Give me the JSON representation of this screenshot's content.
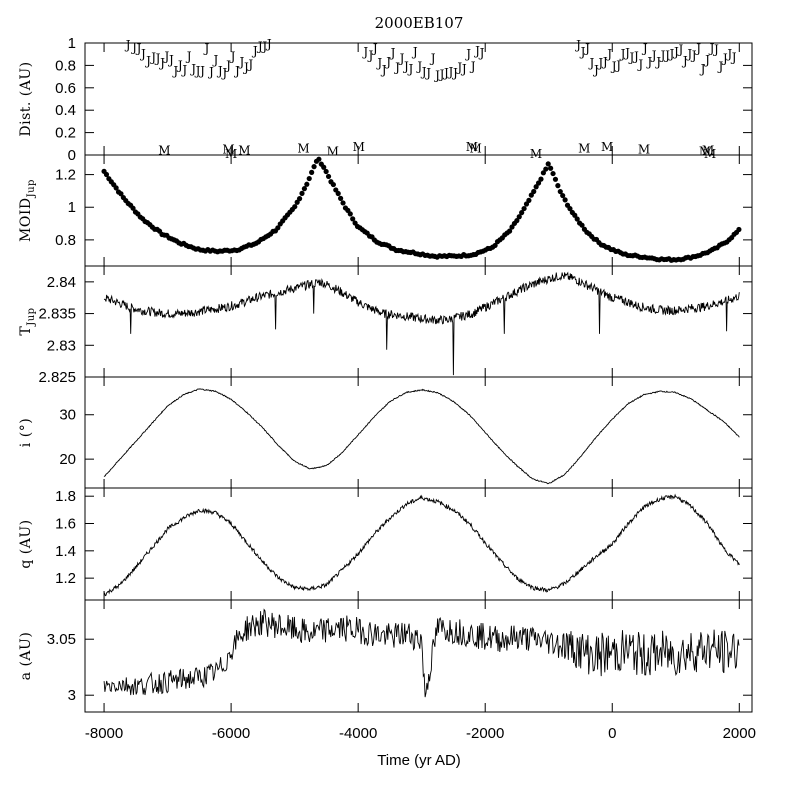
{
  "chart_data": {
    "title": "2000EB107",
    "type": "line",
    "xlabel": "Time (yr AD)",
    "xlim": [
      -8300,
      2200
    ],
    "xticks": [
      -8000,
      -6000,
      -4000,
      -2000,
      0,
      2000
    ],
    "xtick_labels": [
      "-8000",
      "-6000",
      "-4000",
      "-2000",
      "0",
      "2000"
    ],
    "panels": [
      {
        "id": "dist",
        "ylabel": "Dist. (AU)",
        "type": "scatter-letters",
        "ylim": [
          0,
          1
        ],
        "yticks": [
          0,
          0.2,
          0.4,
          0.6,
          0.8,
          1
        ],
        "ytick_labels": [
          "0",
          "0.2",
          "0.4",
          "0.6",
          "0.8",
          "1"
        ],
        "series": [
          {
            "name": "J",
            "x": [
              -7620,
              -7520,
              -7450,
              -7380,
              -7300,
              -7220,
              -7150,
              -7080,
              -7010,
              -6940,
              -6870,
              -6800,
              -6730,
              -6660,
              -6590,
              -6520,
              -6450,
              -6380,
              -6310,
              -6240,
              -6170,
              -6100,
              -6040,
              -5970,
              -5900,
              -5830,
              -5760,
              -5690,
              -5620,
              -5540,
              -5470,
              -5400,
              -3880,
              -3800,
              -3730,
              -3660,
              -3590,
              -3520,
              -3450,
              -3380,
              -3310,
              -3240,
              -3170,
              -3100,
              -3030,
              -2960,
              -2890,
              -2820,
              -2750,
              -2680,
              -2610,
              -2540,
              -2470,
              -2400,
              -2330,
              -2260,
              -2190,
              -2120,
              -2050,
              -530,
              -460,
              -390,
              -320,
              -250,
              -180,
              -110,
              -40,
              30,
              100,
              170,
              240,
              310,
              380,
              450,
              520,
              590,
              660,
              730,
              800,
              870,
              940,
              1010,
              1080,
              1150,
              1220,
              1290,
              1360,
              1430,
              1500,
              1570,
              1640,
              1710,
              1780,
              1850,
              1920
            ],
            "y": [
              0.98,
              0.96,
              0.95,
              0.9,
              0.84,
              0.87,
              0.86,
              0.82,
              0.88,
              0.85,
              0.75,
              0.8,
              0.76,
              0.88,
              0.77,
              0.75,
              0.75,
              0.95,
              0.74,
              0.85,
              0.75,
              0.73,
              0.8,
              0.88,
              0.75,
              0.83,
              0.78,
              0.81,
              0.93,
              0.97,
              0.97,
              0.99,
              0.92,
              0.89,
              0.95,
              0.82,
              0.76,
              0.83,
              0.91,
              0.78,
              0.86,
              0.79,
              0.77,
              0.92,
              0.79,
              0.74,
              0.73,
              0.86,
              0.71,
              0.72,
              0.73,
              0.74,
              0.73,
              0.78,
              0.77,
              0.9,
              0.79,
              0.93,
              0.91,
              0.98,
              0.92,
              0.95,
              0.82,
              0.76,
              0.82,
              0.83,
              0.9,
              0.79,
              0.8,
              0.9,
              0.91,
              0.87,
              0.88,
              0.81,
              0.95,
              0.83,
              0.89,
              0.83,
              0.89,
              0.89,
              0.9,
              0.92,
              0.94,
              0.84,
              0.9,
              0.89,
              0.95,
              0.77,
              0.85,
              0.95,
              0.94,
              0.79,
              0.86,
              0.9,
              0.87
            ]
          },
          {
            "name": "M",
            "x": [
              -7050,
              -6040,
              -6000,
              -5790,
              -4860,
              -4400,
              -3990,
              -2210,
              -2150,
              -1200,
              -440,
              -80,
              500,
              1460,
              1510,
              1540
            ],
            "y": [
              0.04,
              0.05,
              0.01,
              0.04,
              0.06,
              0.03,
              0.07,
              0.07,
              0.06,
              0.01,
              0.06,
              0.07,
              0.05,
              0.03,
              0.04,
              0.01
            ]
          }
        ]
      },
      {
        "id": "moid",
        "ylabel": "MOID",
        "ylabel_sub": "Jup",
        "type": "scatter",
        "ylim": [
          0.64,
          1.32
        ],
        "yticks": [
          0.8,
          1,
          1.2
        ],
        "ytick_labels": [
          "0.8",
          "1",
          "1.2"
        ],
        "series": [
          {
            "x": [
              -8000,
              -7700,
              -7400,
              -7100,
              -6800,
              -6500,
              -6200,
              -5900,
              -5600,
              -5300,
              -5000,
              -4800,
              -4700,
              -4640,
              -4560,
              -4400,
              -4200,
              -4000,
              -3700,
              -3400,
              -3100,
              -2800,
              -2500,
              -2200,
              -1900,
              -1600,
              -1400,
              -1200,
              -1050,
              -1000,
              -950,
              -800,
              -600,
              -400,
              -200,
              0,
              200,
              400,
              600,
              800,
              1000,
              1200,
              1400,
              1600,
              1800,
              2000
            ],
            "y": [
              1.22,
              1.06,
              0.93,
              0.84,
              0.78,
              0.74,
              0.73,
              0.74,
              0.78,
              0.86,
              1.0,
              1.15,
              1.24,
              1.3,
              1.26,
              1.14,
              1.0,
              0.88,
              0.79,
              0.74,
              0.72,
              0.7,
              0.7,
              0.71,
              0.75,
              0.86,
              0.98,
              1.12,
              1.23,
              1.27,
              1.22,
              1.08,
              0.95,
              0.85,
              0.78,
              0.74,
              0.71,
              0.7,
              0.69,
              0.68,
              0.68,
              0.69,
              0.71,
              0.74,
              0.79,
              0.86
            ]
          }
        ]
      },
      {
        "id": "tjup",
        "ylabel": "T",
        "ylabel_sub": "Jup",
        "type": "line",
        "ylim": [
          2.825,
          2.8425
        ],
        "yticks": [
          2.825,
          2.83,
          2.835,
          2.84
        ],
        "ytick_labels": [
          "2.825",
          "2.83",
          "2.835",
          "2.84"
        ],
        "series": [
          {
            "x": [
              -8000,
              -7800,
              -7600,
              -7400,
              -7200,
              -7000,
              -6800,
              -6600,
              -6400,
              -6200,
              -6000,
              -5800,
              -5600,
              -5400,
              -5200,
              -5000,
              -4800,
              -4600,
              -4400,
              -4200,
              -4000,
              -3800,
              -3600,
              -3400,
              -3200,
              -3000,
              -2800,
              -2600,
              -2400,
              -2200,
              -2000,
              -1800,
              -1600,
              -1400,
              -1200,
              -1000,
              -800,
              -600,
              -400,
              -200,
              0,
              200,
              400,
              600,
              800,
              1000,
              1200,
              1400,
              1600,
              1800,
              2000
            ],
            "y": [
              2.8375,
              2.8368,
              2.836,
              2.8355,
              2.8352,
              2.835,
              2.835,
              2.8352,
              2.8355,
              2.8358,
              2.8362,
              2.8368,
              2.8375,
              2.838,
              2.8385,
              2.839,
              2.8395,
              2.84,
              2.8392,
              2.838,
              2.8368,
              2.8358,
              2.835,
              2.8348,
              2.8345,
              2.8342,
              2.834,
              2.834,
              2.8345,
              2.835,
              2.836,
              2.837,
              2.838,
              2.839,
              2.8398,
              2.8405,
              2.841,
              2.8405,
              2.8395,
              2.8385,
              2.8375,
              2.837,
              2.8362,
              2.8358,
              2.8355,
              2.8355,
              2.8358,
              2.836,
              2.8365,
              2.837,
              2.8378
            ]
          }
        ],
        "dips": {
          "x": [
            -7580,
            -5300,
            -4700,
            -3550,
            -2500,
            -1700,
            -200,
            1800
          ],
          "y": [
            2.8318,
            2.8325,
            2.835,
            2.8293,
            2.8253,
            2.8318,
            2.8318,
            2.8322
          ]
        }
      },
      {
        "id": "incl",
        "ylabel": "i (°)",
        "type": "line",
        "ylim": [
          13.5,
          38.5
        ],
        "yticks": [
          20,
          30
        ],
        "ytick_labels": [
          "20",
          "30"
        ],
        "series": [
          {
            "x": [
              -8000,
              -7750,
              -7500,
              -7250,
              -7000,
              -6750,
              -6500,
              -6250,
              -6000,
              -5750,
              -5500,
              -5250,
              -5000,
              -4750,
              -4500,
              -4250,
              -4000,
              -3750,
              -3500,
              -3250,
              -3000,
              -2750,
              -2500,
              -2250,
              -2000,
              -1750,
              -1500,
              -1250,
              -1000,
              -750,
              -500,
              -250,
              0,
              250,
              500,
              750,
              1000,
              1250,
              1500,
              1750,
              2000
            ],
            "y": [
              16,
              20,
              24,
              28,
              32,
              34.5,
              35.8,
              35.3,
              33.5,
              30.5,
              27,
              23,
              19.5,
              17.8,
              18.5,
              21.5,
              25.5,
              29.5,
              33,
              35,
              35.6,
              35,
              33,
              30,
              26,
              22,
              18.5,
              15.5,
              14.5,
              16.5,
              20.5,
              25,
              29,
              32.5,
              34.5,
              35.3,
              35,
              33.5,
              31,
              28.5,
              25
            ]
          }
        ]
      },
      {
        "id": "q",
        "ylabel": "q (AU)",
        "type": "line",
        "ylim": [
          1.04,
          1.86
        ],
        "yticks": [
          1.2,
          1.4,
          1.6,
          1.8
        ],
        "ytick_labels": [
          "1.2",
          "1.4",
          "1.6",
          "1.8"
        ],
        "series": [
          {
            "x": [
              -8000,
              -7750,
              -7500,
              -7250,
              -7000,
              -6750,
              -6500,
              -6250,
              -6000,
              -5750,
              -5500,
              -5250,
              -5000,
              -4750,
              -4500,
              -4250,
              -4000,
              -3750,
              -3500,
              -3250,
              -3000,
              -2750,
              -2500,
              -2250,
              -2000,
              -1750,
              -1500,
              -1250,
              -1000,
              -750,
              -500,
              -250,
              0,
              250,
              500,
              750,
              1000,
              1250,
              1500,
              1750,
              2000
            ],
            "y": [
              1.08,
              1.15,
              1.28,
              1.42,
              1.56,
              1.64,
              1.7,
              1.68,
              1.6,
              1.46,
              1.32,
              1.2,
              1.13,
              1.12,
              1.15,
              1.26,
              1.38,
              1.52,
              1.64,
              1.74,
              1.79,
              1.76,
              1.7,
              1.6,
              1.46,
              1.32,
              1.2,
              1.13,
              1.11,
              1.16,
              1.26,
              1.36,
              1.45,
              1.6,
              1.72,
              1.78,
              1.8,
              1.72,
              1.6,
              1.42,
              1.3
            ]
          }
        ]
      },
      {
        "id": "a",
        "ylabel": "a (AU)",
        "type": "line",
        "ylim": [
          2.985,
          3.085
        ],
        "yticks": [
          3,
          3.05
        ],
        "ytick_labels": [
          "3",
          "3.05"
        ],
        "series": [
          {
            "x": [
              -8000,
              -7750,
              -7500,
              -7250,
              -7000,
              -6750,
              -6500,
              -6250,
              -6100,
              -6000,
              -5900,
              -5750,
              -5500,
              -5250,
              -5000,
              -4750,
              -4500,
              -4250,
              -4000,
              -3750,
              -3500,
              -3250,
              -3000,
              -2950,
              -2750,
              -2500,
              -2250,
              -2000,
              -1750,
              -1500,
              -1250,
              -1000,
              -750,
              -500,
              -250,
              0,
              250,
              500,
              750,
              1000,
              1250,
              1500,
              1750,
              2000
            ],
            "y": [
              3.008,
              3.01,
              3.008,
              3.01,
              3.012,
              3.014,
              3.016,
              3.02,
              3.028,
              3.04,
              3.05,
              3.06,
              3.065,
              3.062,
              3.058,
              3.055,
              3.058,
              3.06,
              3.058,
              3.055,
              3.052,
              3.055,
              3.05,
              3.0,
              3.06,
              3.058,
              3.055,
              3.052,
              3.05,
              3.052,
              3.05,
              3.048,
              3.045,
              3.04,
              3.035,
              3.038,
              3.04,
              3.035,
              3.038,
              3.036,
              3.04,
              3.042,
              3.038,
              3.042
            ]
          }
        ],
        "noise": [
          0.008,
          0.008,
          0.009,
          0.01,
          0.01,
          0.01,
          0.01,
          0.01,
          0.01,
          0.01,
          0.01,
          0.012,
          0.012,
          0.012,
          0.012,
          0.012,
          0.012,
          0.012,
          0.012,
          0.012,
          0.012,
          0.012,
          0.012,
          0.012,
          0.012,
          0.012,
          0.012,
          0.012,
          0.012,
          0.012,
          0.012,
          0.012,
          0.015,
          0.018,
          0.02,
          0.02,
          0.02,
          0.02,
          0.02,
          0.02,
          0.02,
          0.02,
          0.02,
          0.02
        ]
      }
    ]
  }
}
